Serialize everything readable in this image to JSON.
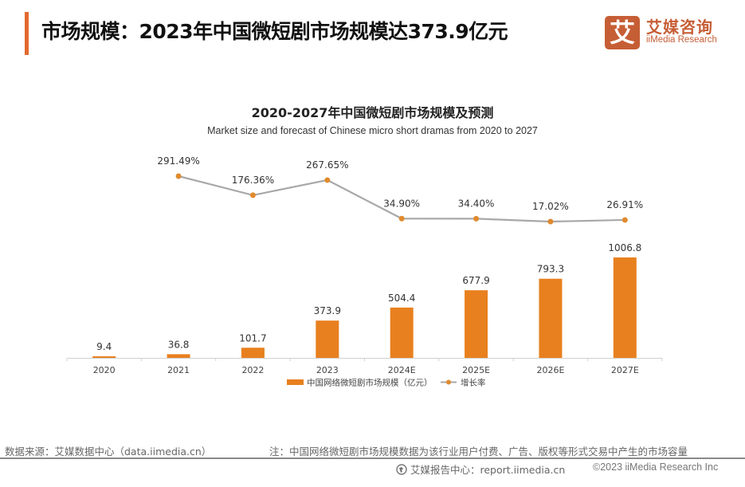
{
  "header": {
    "title": "市场规模：2023年中国微短剧市场规模达373.9亿元",
    "logo_glyph": "艾",
    "logo_cn": "艾媒咨询",
    "logo_en": "iiMedia Research"
  },
  "colors": {
    "accent": "#E2692F",
    "brand": "#C65E35",
    "bar": "#E8801F",
    "line": "#A8A8A8",
    "marker": "#E08A2E"
  },
  "chart_data": {
    "type": "bar",
    "title": "2020-2027年中国微短剧市场规模及预测",
    "subtitle": "Market size and forecast of Chinese micro short dramas from 2020 to 2027",
    "categories": [
      "2020",
      "2021",
      "2022",
      "2023",
      "2024E",
      "2025E",
      "2026E",
      "2027E"
    ],
    "series": [
      {
        "name": "中国网络微短剧市场规模（亿元）",
        "type": "bar",
        "values": [
          9.4,
          36.8,
          101.7,
          373.9,
          504.4,
          677.9,
          793.3,
          1006.8
        ],
        "labels": [
          "9.4",
          "36.8",
          "101.7",
          "373.9",
          "504.4",
          "677.9",
          "793.3",
          "1006.8"
        ]
      },
      {
        "name": "增长率",
        "type": "line",
        "values": [
          null,
          291.49,
          176.36,
          267.65,
          34.9,
          34.4,
          17.02,
          26.91
        ],
        "labels": [
          "",
          "291.49%",
          "176.36%",
          "267.65%",
          "34.90%",
          "34.40%",
          "17.02%",
          "26.91%"
        ]
      }
    ],
    "xlabel": "",
    "ylabel": "",
    "grid": false,
    "legend": "bottom",
    "y_axis_visible": false
  },
  "footer": {
    "source": "数据来源：艾媒数据中心（data.iimedia.cn）",
    "note": "注：中国网络微短剧市场规模数据为该行业用户付费、广告、版权等形式交易中产生的市场容量",
    "report": "艾媒报告中心：report.iimedia.cn",
    "copyright": "©2023  iiMedia Research Inc"
  }
}
